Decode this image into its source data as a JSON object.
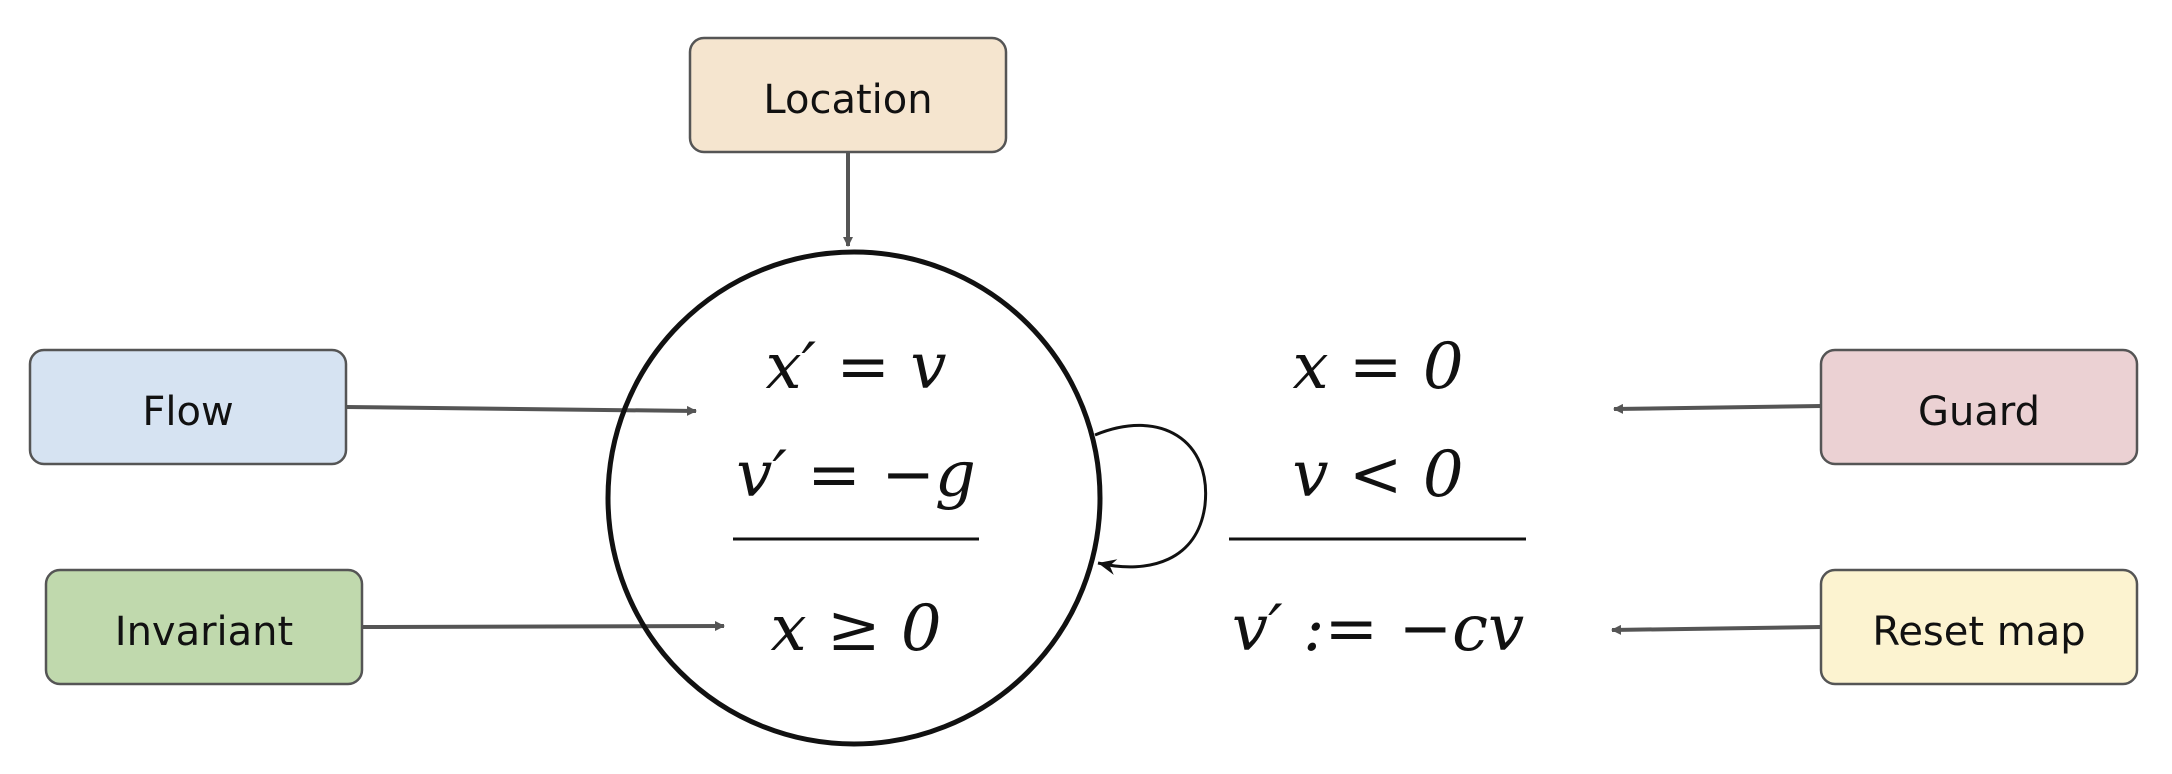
{
  "labels": {
    "location": "Location",
    "flow": "Flow",
    "invariant": "Invariant",
    "guard": "Guard",
    "reset_map": "Reset map"
  },
  "state": {
    "flow_eq_1": "x′ = v",
    "flow_eq_2": "v′ = −g",
    "invariant_eq": "x ≥ 0"
  },
  "transition": {
    "guard_eq_1": "x = 0",
    "guard_eq_2": "v < 0",
    "reset_eq": "v′ := −cv"
  },
  "colors": {
    "location": "#f5e5cf",
    "flow": "#d6e3f2",
    "invariant": "#c0d9ad",
    "guard": "#ebd1d3",
    "reset_map": "#fcf3d0",
    "arrow": "#555555"
  }
}
